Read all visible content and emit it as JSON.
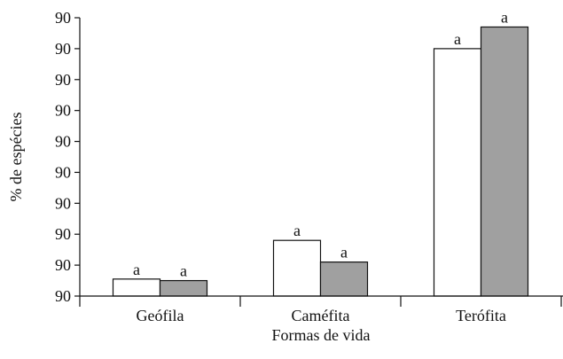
{
  "chart_data": {
    "type": "bar",
    "title": "",
    "xlabel": "Formas de vida",
    "ylabel": "% de espécies",
    "categories": [
      "Geófila",
      "Caméfita",
      "Terófita"
    ],
    "y_tick_labels": [
      "90",
      "90",
      "90",
      "90",
      "90",
      "90",
      "90",
      "90",
      "90",
      "90"
    ],
    "ylim": [
      0,
      90
    ],
    "series": [
      {
        "color": "#ffffff",
        "values": [
          5.5,
          18,
          80
        ]
      },
      {
        "color": "#a0a0a0",
        "values": [
          5,
          11,
          87
        ]
      }
    ],
    "data_labels": [
      [
        "a",
        "a",
        "a"
      ],
      [
        "a",
        "a",
        "a"
      ]
    ],
    "grid": false,
    "legend": "none"
  }
}
